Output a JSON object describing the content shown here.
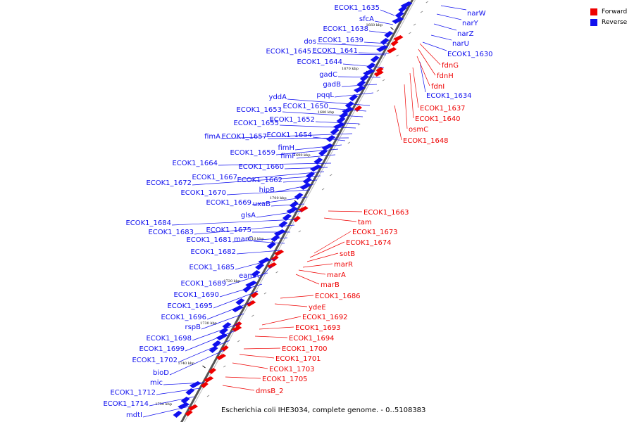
{
  "legend": {
    "forward_label": "Forward",
    "reverse_label": "Reverse",
    "forward_color": "#ee0000",
    "reverse_color": "#1010ee"
  },
  "caption": "Escherichia coli IHE3034, complete genome. - 0..5108383",
  "ticks": [
    "1660 kbp",
    "1670 kbp",
    "1680 kbp",
    "1690 kbp",
    "1700 kbp",
    "1710 kbp",
    "1720 kbp",
    "1730 kbp",
    "1740 kbp",
    "1750 kbp"
  ],
  "reverse_genes_left": [
    "ECOK1_1635",
    "sfcA",
    "ECOK1_1638",
    "dos",
    "ECOK1_1639",
    "ECOK1_1645",
    "ECOK1_1641",
    "ECOK1_1644",
    "gadC",
    "gadB",
    "pqqL",
    "yddA",
    "ECOK1_1650",
    "ECOK1_1653",
    "ECOK1_1652",
    "ECOK1_1655",
    "fimA",
    "ECOK1_1657",
    "ECOK1_1654",
    "fimH",
    "ECOK1_1659",
    "fimF",
    "ECOK1_1664",
    "ECOK1_1660",
    "ECOK1_1667",
    "ECOK1_1672",
    "ECOK1_1662",
    "hipB",
    "ECOK1_1670",
    "ECOK1_1669",
    "uxaB",
    "glsA",
    "ECOK1_1684",
    "ECOK1_1683",
    "ECOK1_1675",
    "ECOK1_1681",
    "marC",
    "ECOK1_1682",
    "ECOK1_1685",
    "eamA",
    "ECOK1_1689",
    "ECOK1_1690",
    "ECOK1_1695",
    "ECOK1_1696",
    "rspB",
    "ECOK1_1698",
    "ECOK1_1699",
    "ECOK1_1702",
    "bioD",
    "mic",
    "ECOK1_1712",
    "ECOK1_1714",
    "mdtI"
  ],
  "reverse_genes_right": [
    "narW",
    "narY",
    "narZ",
    "narU",
    "ECOK1_1630",
    "ECOK1_1634"
  ],
  "forward_genes": [
    "fdnG",
    "fdnH",
    "fdnI",
    "ECOK1_1637",
    "ECOK1_1640",
    "osmC",
    "ECOK1_1648",
    "ECOK1_1663",
    "tam",
    "ECOK1_1673",
    "ECOK1_1674",
    "sotB",
    "marR",
    "marA",
    "marB",
    "ECOK1_1686",
    "ydeE",
    "ECOK1_1692",
    "ECOK1_1693",
    "ECOK1_1694",
    "ECOK1_1700",
    "ECOK1_1701",
    "ECOK1_1703",
    "ECOK1_1705",
    "dmsB_2"
  ]
}
